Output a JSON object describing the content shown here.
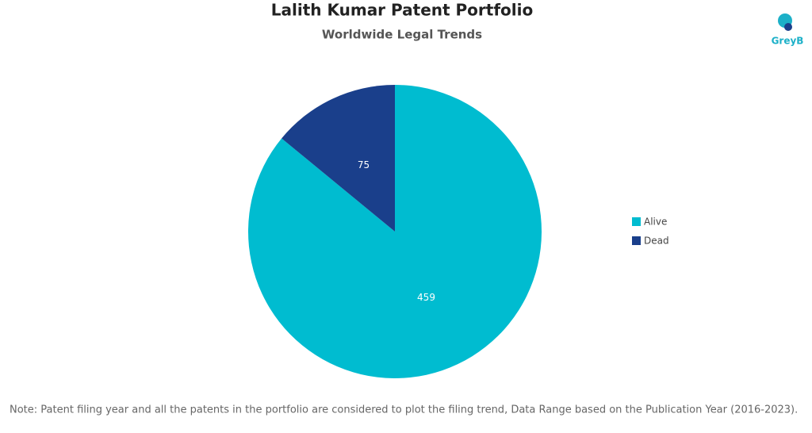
{
  "chart_data": {
    "type": "pie",
    "title": "Lalith Kumar Patent Portfolio",
    "subtitle": "Worldwide Legal Trends",
    "categories": [
      "Alive",
      "Dead"
    ],
    "values": [
      459,
      75
    ],
    "colors": [
      "#00bcd0",
      "#1a3f8b"
    ],
    "legend": "right",
    "note": "Note: Patent filing year and all the patents in the portfolio are considered to plot the filing trend, Data Range based on the Publication Year (2016-2023)."
  },
  "logo": "GreyB"
}
